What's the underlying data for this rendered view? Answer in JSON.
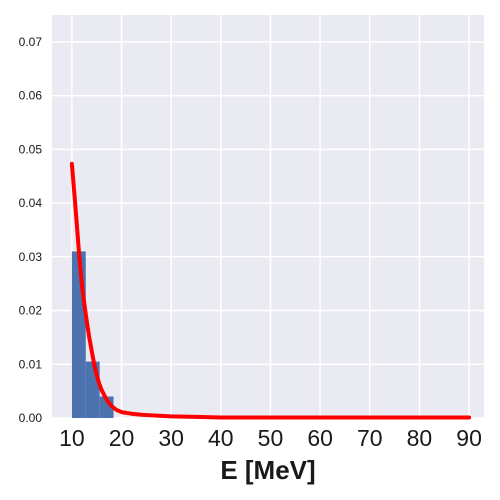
{
  "chart_data": {
    "type": "bar",
    "title": "",
    "xlabel": "E [MeV]",
    "ylabel": "",
    "xlim": [
      6,
      93
    ],
    "ylim": [
      0,
      0.075
    ],
    "x_ticks": [
      10,
      20,
      30,
      40,
      50,
      60,
      70,
      80,
      90
    ],
    "x_tick_labels": [
      "10",
      "20",
      "30",
      "40",
      "50",
      "60",
      "70",
      "80",
      "90"
    ],
    "y_ticks": [
      0,
      0.01,
      0.02,
      0.03,
      0.04,
      0.05,
      0.06,
      0.07
    ],
    "y_tick_labels": [
      "0.00",
      "0.01",
      "0.02",
      "0.03",
      "0.04",
      "0.05",
      "0.06",
      "0.07"
    ],
    "grid": true,
    "legend": "none",
    "colors": {
      "background": "#eaeaf2",
      "grid": "#ffffff",
      "bars": "#4c72b0",
      "curve": "#ff0000"
    },
    "histogram": {
      "bin_edges": [
        10,
        12.8,
        15.6,
        18.4
      ],
      "values": [
        0.031,
        0.0105,
        0.004
      ]
    },
    "curve": {
      "x": [
        10,
        10.5,
        11,
        11.5,
        12,
        12.5,
        13,
        13.5,
        14,
        14.5,
        15,
        15.5,
        16,
        17,
        18,
        19,
        20,
        22,
        24,
        26,
        28,
        30,
        35,
        40,
        50,
        60,
        70,
        80,
        90
      ],
      "y": [
        0.0473,
        0.0418,
        0.036,
        0.03,
        0.025,
        0.0213,
        0.018,
        0.015,
        0.0125,
        0.01,
        0.008,
        0.0064,
        0.0052,
        0.0034,
        0.0022,
        0.0015,
        0.0011,
        0.0008,
        0.0006,
        0.0005,
        0.0004,
        0.0003,
        0.0002,
        0.0001,
        0.0001,
        0.0001,
        0.0001,
        0.0001,
        0.0001
      ]
    }
  }
}
